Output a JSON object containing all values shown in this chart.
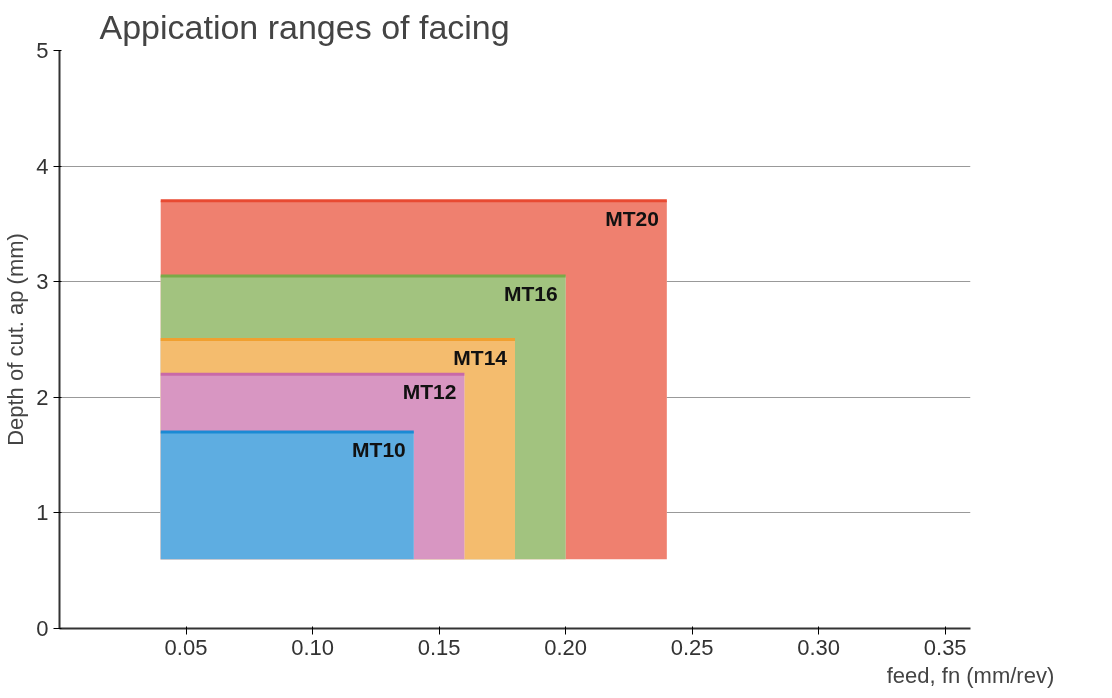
{
  "chart_data": {
    "type": "line",
    "title": "Appication  ranges of facing",
    "xlabel": "feed, fn (mm/rev)",
    "ylabel": "Depth of cut. ap (mm)",
    "series": [
      {
        "name": "MT10",
        "color": "#1a8ad4",
        "x": [
          0.04,
          0.14
        ],
        "values": [
          1.7,
          1.7
        ],
        "lower": [
          0.6,
          0.6
        ],
        "upper": [
          1.7,
          1.7
        ]
      },
      {
        "name": "MT12",
        "color": "#c86aa8",
        "x": [
          0.04,
          0.16
        ],
        "values": [
          2.2,
          2.2
        ],
        "lower": [
          0.6,
          0.6
        ],
        "upper": [
          2.2,
          2.2
        ]
      },
      {
        "name": "MT14",
        "color": "#f0a030",
        "x": [
          0.04,
          0.18
        ],
        "values": [
          2.5,
          2.5
        ],
        "lower": [
          0.6,
          0.6
        ],
        "upper": [
          2.5,
          2.5
        ]
      },
      {
        "name": "MT16",
        "color": "#7aaa48",
        "x": [
          0.04,
          0.2
        ],
        "values": [
          3.05,
          3.05
        ],
        "lower": [
          0.6,
          0.6
        ],
        "upper": [
          3.05,
          3.05
        ]
      },
      {
        "name": "MT20",
        "color": "#e84a32",
        "x": [
          0.04,
          0.24
        ],
        "values": [
          3.7,
          3.7
        ],
        "lower": [
          0.6,
          0.6
        ],
        "upper": [
          3.7,
          3.7
        ]
      }
    ],
    "xlim": [
      0,
      0.36
    ],
    "ylim": [
      0,
      5
    ],
    "xticks": [
      {
        "value": 0.05,
        "label": "0.05"
      },
      {
        "value": 0.1,
        "label": "0.10"
      },
      {
        "value": 0.15,
        "label": "0.15"
      },
      {
        "value": 0.2,
        "label": "0.20"
      },
      {
        "value": 0.25,
        "label": "0.25"
      },
      {
        "value": 0.3,
        "label": "0.30"
      },
      {
        "value": 0.35,
        "label": "0.35"
      }
    ],
    "yticks": [
      0,
      1,
      2,
      3,
      4,
      5
    ],
    "grid": "y",
    "legend": false
  }
}
